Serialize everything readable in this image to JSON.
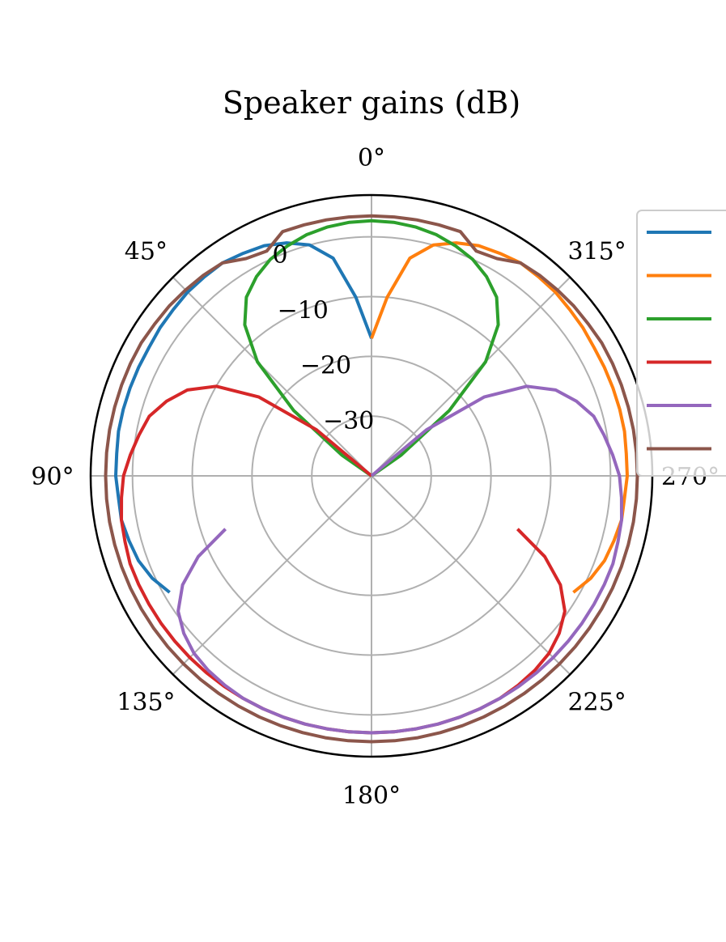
{
  "chart_data": {
    "type": "polar-line",
    "title": "Speaker gains (dB)",
    "theta_direction": "counterclockwise",
    "theta_zero": "top",
    "theta_ticks": [
      0,
      45,
      90,
      135,
      180,
      225,
      270,
      315
    ],
    "theta_tick_labels": [
      "0°",
      "45°",
      "90°",
      "135°",
      "180°",
      "225°",
      "270°",
      "315°"
    ],
    "r_lim": [
      -40,
      7
    ],
    "r_ticks": [
      -30,
      -20,
      -10,
      0
    ],
    "r_tick_labels": [
      "−30",
      "−20",
      "−10",
      "0"
    ],
    "r_label_angle": 22.5,
    "grid": true,
    "legend": {
      "position": "right",
      "entries": [
        "",
        "",
        "",
        "",
        "",
        ""
      ]
    },
    "series": [
      {
        "color": "#1f77b4",
        "theta": [
          0,
          5,
          10,
          15,
          20,
          25,
          30,
          35,
          40,
          45,
          50,
          55,
          60,
          65,
          70,
          75,
          80,
          85,
          90,
          95,
          100,
          105,
          110,
          115,
          120
        ],
        "r": [
          -17,
          -10,
          -3,
          0,
          1.5,
          2.5,
          3,
          3.5,
          3.5,
          3.5,
          3.3,
          3.2,
          3.0,
          3.0,
          3.0,
          3.0,
          3.0,
          2.8,
          2.8,
          2.5,
          2.5,
          2.0,
          1.5,
          0.5,
          -1
        ]
      },
      {
        "color": "#ff7f0e",
        "theta": [
          0,
          355,
          350,
          345,
          340,
          335,
          330,
          325,
          320,
          315,
          310,
          305,
          300,
          295,
          290,
          285,
          280,
          275,
          270,
          265,
          260,
          255,
          250,
          245,
          240
        ],
        "r": [
          -17,
          -10,
          -3,
          0,
          1.5,
          2.5,
          3,
          3.5,
          3.5,
          3.5,
          3.3,
          3.2,
          3.0,
          3.0,
          3.0,
          3.0,
          3.0,
          2.8,
          2.8,
          2.5,
          2.5,
          2.0,
          1.5,
          0.5,
          -1
        ]
      },
      {
        "color": "#2ca02c",
        "theta": [
          60,
          55,
          50,
          45,
          40,
          35,
          30,
          25,
          20,
          15,
          10,
          5,
          0,
          355,
          350,
          345,
          340,
          335,
          330,
          325,
          320,
          315,
          310,
          305,
          300
        ],
        "r": [
          -40,
          -34,
          -23,
          -13,
          -7,
          -3.5,
          -1.5,
          0,
          1,
          1.8,
          2.3,
          2.6,
          2.7,
          2.6,
          2.3,
          1.8,
          1.0,
          0,
          -1.5,
          -3.5,
          -7,
          -13,
          -23,
          -34,
          -40
        ]
      },
      {
        "color": "#d62728",
        "theta": [
          45,
          50,
          55,
          60,
          65,
          70,
          75,
          80,
          85,
          90,
          95,
          100,
          105,
          110,
          115,
          120,
          125,
          130,
          135,
          140,
          145,
          150,
          155,
          160,
          165,
          170,
          175,
          180,
          185,
          190,
          195,
          200,
          205,
          210,
          215,
          220,
          225,
          230,
          235,
          240,
          245,
          250
        ],
        "r": [
          -40,
          -28,
          -17,
          -10,
          -6,
          -3.5,
          -1.5,
          -0.5,
          0.5,
          1.5,
          2.0,
          2.5,
          2.7,
          3.0,
          3.0,
          3.0,
          3.0,
          3.0,
          3.0,
          3.0,
          3.0,
          3.0,
          3.0,
          3.0,
          3.0,
          3.0,
          3.0,
          3.0,
          3.0,
          3.0,
          3.0,
          3.0,
          3.0,
          3.0,
          2.8,
          2.5,
          2.0,
          1.0,
          -0.5,
          -3.5,
          -8,
          -14
        ]
      },
      {
        "color": "#9467bd",
        "theta": [
          315,
          310,
          305,
          300,
          295,
          290,
          285,
          280,
          275,
          270,
          265,
          260,
          255,
          250,
          245,
          240,
          235,
          230,
          225,
          220,
          215,
          210,
          205,
          200,
          195,
          190,
          185,
          180,
          175,
          170,
          165,
          160,
          155,
          150,
          145,
          140,
          135,
          130,
          125,
          120,
          115,
          110
        ],
        "r": [
          -40,
          -28,
          -17,
          -10,
          -6,
          -3.5,
          -1.5,
          -0.5,
          0.5,
          1.5,
          2.0,
          2.5,
          2.7,
          3.0,
          3.0,
          3.0,
          3.0,
          3.0,
          3.0,
          3.0,
          3.0,
          3.0,
          3.0,
          3.0,
          3.0,
          3.0,
          3.0,
          3.0,
          3.0,
          3.0,
          3.0,
          3.0,
          3.0,
          3.0,
          2.8,
          2.5,
          2.0,
          1.0,
          -0.5,
          -3.5,
          -8,
          -14
        ]
      },
      {
        "color": "#8c564b",
        "theta": [
          0,
          5,
          10,
          15,
          20,
          25,
          30,
          35,
          40,
          45,
          50,
          55,
          60,
          65,
          70,
          75,
          80,
          85,
          90,
          95,
          100,
          105,
          110,
          115,
          120,
          125,
          130,
          135,
          140,
          145,
          150,
          155,
          160,
          165,
          170,
          175,
          180,
          185,
          190,
          195,
          200,
          205,
          210,
          215,
          220,
          225,
          230,
          235,
          240,
          245,
          250,
          255,
          260,
          265,
          270,
          275,
          280,
          285,
          290,
          295,
          300,
          305,
          310,
          315,
          320,
          325,
          330,
          335,
          340,
          345,
          350,
          355,
          360
        ],
        "r": [
          3.5,
          3.5,
          3.5,
          3.5,
          3.5,
          1.5,
          2.0,
          3.5,
          3.8,
          4.0,
          4.2,
          4.3,
          4.5,
          4.5,
          4.5,
          4.5,
          4.5,
          4.5,
          4.5,
          4.5,
          4.5,
          4.5,
          4.5,
          4.5,
          4.5,
          4.5,
          4.5,
          4.5,
          4.5,
          4.5,
          4.5,
          4.5,
          4.5,
          4.5,
          4.5,
          4.5,
          4.5,
          4.5,
          4.5,
          4.5,
          4.5,
          4.5,
          4.5,
          4.5,
          4.5,
          4.5,
          4.5,
          4.5,
          4.5,
          4.5,
          4.5,
          4.5,
          4.5,
          4.5,
          4.5,
          4.5,
          4.5,
          4.5,
          4.5,
          4.5,
          4.5,
          4.3,
          4.2,
          4.0,
          3.8,
          3.5,
          2.0,
          1.5,
          3.5,
          3.5,
          3.5,
          3.5,
          3.5
        ]
      }
    ]
  }
}
